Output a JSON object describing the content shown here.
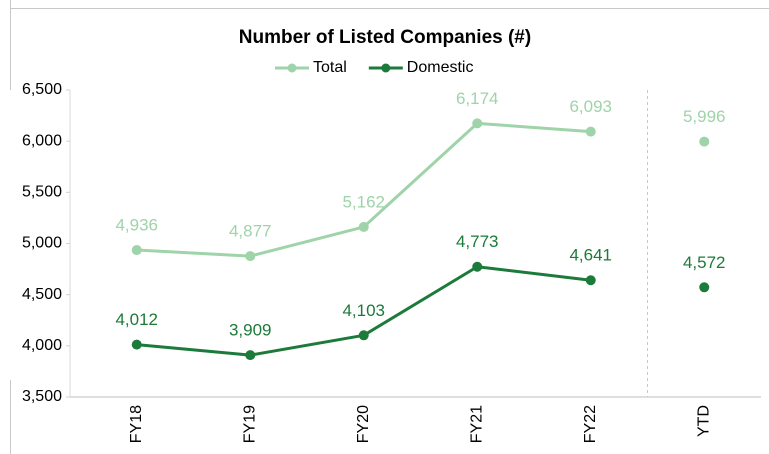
{
  "chart_data": {
    "type": "line",
    "title": "Number of Listed Companies (#)",
    "categories": [
      "FY18",
      "FY19",
      "FY20",
      "FY21",
      "FY22",
      "YTD"
    ],
    "series": [
      {
        "name": "Total",
        "color": "#9fd3a9",
        "values": [
          4936,
          4877,
          5162,
          6174,
          6093,
          5996
        ],
        "value_labels": [
          "4,936",
          "4,877",
          "5,162",
          "6,174",
          "6,093",
          "5,996"
        ]
      },
      {
        "name": "Domestic",
        "color": "#1c7a3a",
        "values": [
          4012,
          3909,
          4103,
          4773,
          4641,
          4572
        ],
        "value_labels": [
          "4,012",
          "3,909",
          "4,103",
          "4,773",
          "4,641",
          "4,572"
        ]
      }
    ],
    "connect_last": false,
    "ylim": [
      3500,
      6500
    ],
    "yticks": [
      {
        "value": 3500,
        "label": "3,500"
      },
      {
        "value": 4000,
        "label": "4,000"
      },
      {
        "value": 4500,
        "label": "4,500"
      },
      {
        "value": 5000,
        "label": "5,000"
      },
      {
        "value": 5500,
        "label": "5,500"
      },
      {
        "value": 6000,
        "label": "6,000"
      },
      {
        "value": 6500,
        "label": "6,500"
      }
    ],
    "legend": "top"
  }
}
